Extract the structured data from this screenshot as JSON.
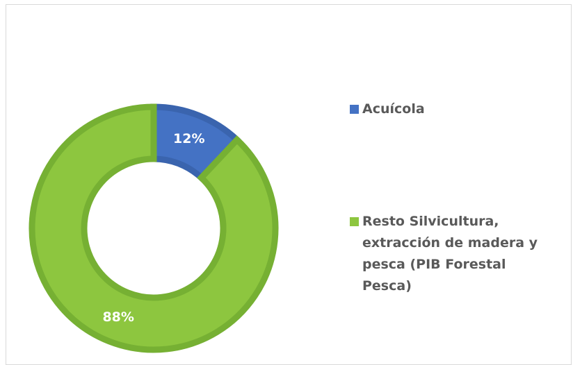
{
  "chart_data": {
    "type": "donut",
    "categories": [
      "Acuícola",
      "Resto Silvicultura, extracción de madera y pesca (PIB Forestal Pesca)"
    ],
    "values": [
      12,
      88
    ],
    "value_labels": [
      "12%",
      "88%"
    ],
    "colors": [
      "#4472c4",
      "#8dc63f"
    ],
    "legend": "right"
  }
}
